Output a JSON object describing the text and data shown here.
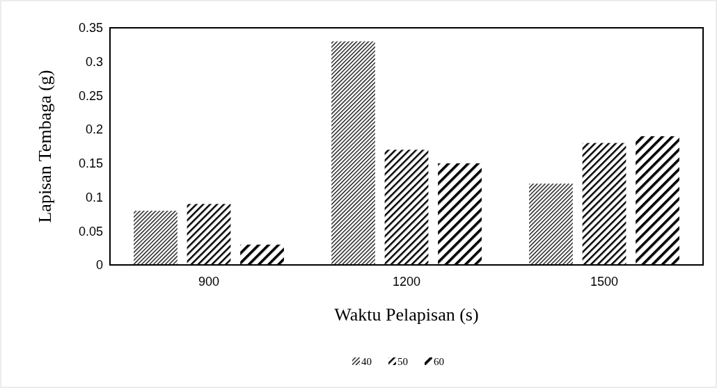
{
  "chart_data": {
    "type": "bar",
    "xlabel": "Waktu Pelapisan (s)",
    "ylabel": "Lapisan Tembaga (g)",
    "categories": [
      "900",
      "1200",
      "1500"
    ],
    "series": [
      {
        "name": "40",
        "color": "#000000",
        "values": [
          0.08,
          0.33,
          0.12
        ]
      },
      {
        "name": "50",
        "color": "#000000",
        "values": [
          0.09,
          0.17,
          0.18
        ]
      },
      {
        "name": "60",
        "color": "#000000",
        "values": [
          0.03,
          0.15,
          0.19
        ]
      }
    ],
    "ylim": [
      0,
      0.35
    ],
    "yticks": [
      0,
      0.05,
      0.1,
      0.15,
      0.2,
      0.25,
      0.3,
      0.35
    ],
    "grid": false,
    "legend": "bottom"
  }
}
